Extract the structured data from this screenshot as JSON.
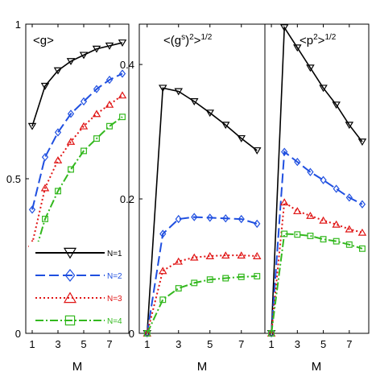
{
  "chart_data": [
    {
      "type": "line",
      "title": "<g>",
      "xlabel": "",
      "ylabel": "",
      "xlim": [
        0.5,
        8.5
      ],
      "ylim": [
        0,
        1
      ],
      "xticks": [
        1,
        3,
        5,
        7
      ],
      "yticks": [
        0,
        0.5,
        1
      ],
      "ytick_labels": [
        "0",
        "0.5",
        "1"
      ],
      "legend": {
        "placement": "bottom-right"
      },
      "series": [
        {
          "name": "N=1",
          "color": "#000000",
          "marker": "triangle-down",
          "dash": "",
          "x": [
            1,
            2,
            3,
            4,
            5,
            6,
            7,
            8
          ],
          "y": [
            0.67,
            0.8,
            0.85,
            0.88,
            0.9,
            0.92,
            0.93,
            0.94
          ]
        },
        {
          "name": "N=2",
          "color": "#1f4fe0",
          "marker": "diamond",
          "dash": "12,5",
          "x": [
            1,
            2,
            3,
            4,
            5,
            6,
            7,
            8
          ],
          "y": [
            0.4,
            0.57,
            0.65,
            0.71,
            0.75,
            0.79,
            0.82,
            0.84
          ]
        },
        {
          "name": "N=3",
          "color": "#e01515",
          "marker": "triangle-up",
          "dash": "2,3",
          "x": [
            1,
            2,
            3,
            4,
            5,
            6,
            7,
            8
          ],
          "y": [
            0.29,
            0.47,
            0.56,
            0.62,
            0.67,
            0.71,
            0.74,
            0.77
          ]
        },
        {
          "name": "N=4",
          "color": "#33b81e",
          "marker": "square",
          "dash": "10,3,2,3",
          "x": [
            1,
            2,
            3,
            4,
            5,
            6,
            7,
            8
          ],
          "y": [
            0.23,
            0.37,
            0.46,
            0.53,
            0.59,
            0.63,
            0.67,
            0.7
          ]
        }
      ]
    },
    {
      "type": "line",
      "title": "<(g^s)^2>^1/2",
      "title_parts": {
        "lead": "<(g",
        "sup1": "s",
        "mid": ")",
        "sup2": "2",
        "mid2": ">",
        "sup3": "1/2"
      },
      "xlabel": "M",
      "ylabel": "",
      "xlim": [
        0.5,
        8.5
      ],
      "ylim": [
        0,
        0.46
      ],
      "xticks": [
        1,
        3,
        5,
        7
      ],
      "yticks": [
        0,
        0.2,
        0.4
      ],
      "ytick_labels": [
        "0",
        "0.2",
        "0.4"
      ],
      "series": [
        {
          "name": "N=1",
          "color": "#000000",
          "marker": "triangle-down",
          "dash": "",
          "x": [
            1,
            2,
            3,
            4,
            5,
            6,
            7,
            8
          ],
          "y": [
            0,
            0.365,
            0.36,
            0.345,
            0.328,
            0.31,
            0.29,
            0.272
          ]
        },
        {
          "name": "N=2",
          "color": "#1f4fe0",
          "marker": "diamond",
          "dash": "12,5",
          "x": [
            1,
            2,
            3,
            4,
            5,
            6,
            7,
            8
          ],
          "y": [
            0,
            0.148,
            0.17,
            0.173,
            0.172,
            0.171,
            0.17,
            0.163
          ]
        },
        {
          "name": "N=3",
          "color": "#e01515",
          "marker": "triangle-up",
          "dash": "2,3",
          "x": [
            1,
            2,
            3,
            4,
            5,
            6,
            7,
            8
          ],
          "y": [
            0,
            0.093,
            0.107,
            0.113,
            0.115,
            0.116,
            0.116,
            0.115
          ]
        },
        {
          "name": "N=4",
          "color": "#33b81e",
          "marker": "square",
          "dash": "10,3,2,3",
          "x": [
            1,
            2,
            3,
            4,
            5,
            6,
            7,
            8
          ],
          "y": [
            0,
            0.05,
            0.067,
            0.075,
            0.08,
            0.082,
            0.084,
            0.085
          ]
        }
      ]
    },
    {
      "type": "line",
      "title": "<p^2>^1/2",
      "title_parts": {
        "lead": "<p",
        "sup1": "2",
        "mid": ">",
        "sup2": "1/2"
      },
      "xlabel": "M",
      "ylabel": "",
      "xlim": [
        0.5,
        8.5
      ],
      "ylim": [
        0,
        0.46
      ],
      "xticks": [
        1,
        3,
        5,
        7
      ],
      "yticks": [],
      "series": [
        {
          "name": "N=1",
          "color": "#000000",
          "marker": "triangle-down",
          "dash": "",
          "x": [
            1,
            2,
            3,
            4,
            5,
            6,
            7,
            8
          ],
          "y": [
            0,
            0.455,
            0.425,
            0.395,
            0.365,
            0.34,
            0.31,
            0.285
          ]
        },
        {
          "name": "N=2",
          "color": "#1f4fe0",
          "marker": "diamond",
          "dash": "12,5",
          "x": [
            1,
            2,
            3,
            4,
            5,
            6,
            7,
            8
          ],
          "y": [
            0,
            0.27,
            0.255,
            0.24,
            0.228,
            0.215,
            0.202,
            0.192
          ]
        },
        {
          "name": "N=3",
          "color": "#e01515",
          "marker": "triangle-up",
          "dash": "2,3",
          "x": [
            1,
            2,
            3,
            4,
            5,
            6,
            7,
            8
          ],
          "y": [
            0,
            0.195,
            0.182,
            0.175,
            0.168,
            0.162,
            0.155,
            0.15
          ]
        },
        {
          "name": "N=4",
          "color": "#33b81e",
          "marker": "square",
          "dash": "10,3,2,3",
          "x": [
            1,
            2,
            3,
            4,
            5,
            6,
            7,
            8
          ],
          "y": [
            0,
            0.148,
            0.147,
            0.145,
            0.14,
            0.137,
            0.132,
            0.126
          ]
        }
      ]
    }
  ]
}
